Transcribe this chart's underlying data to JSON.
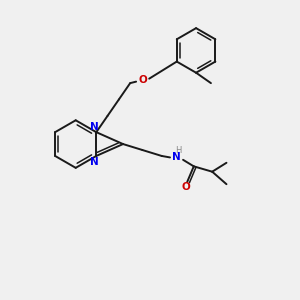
{
  "background_color": "#f0f0f0",
  "bond_color": "#1a1a1a",
  "N_color": "#0000ee",
  "O_color": "#cc0000",
  "H_color": "#888888",
  "figsize": [
    3.0,
    3.0
  ],
  "dpi": 100,
  "xlim": [
    0,
    10
  ],
  "ylim": [
    0,
    10
  ]
}
